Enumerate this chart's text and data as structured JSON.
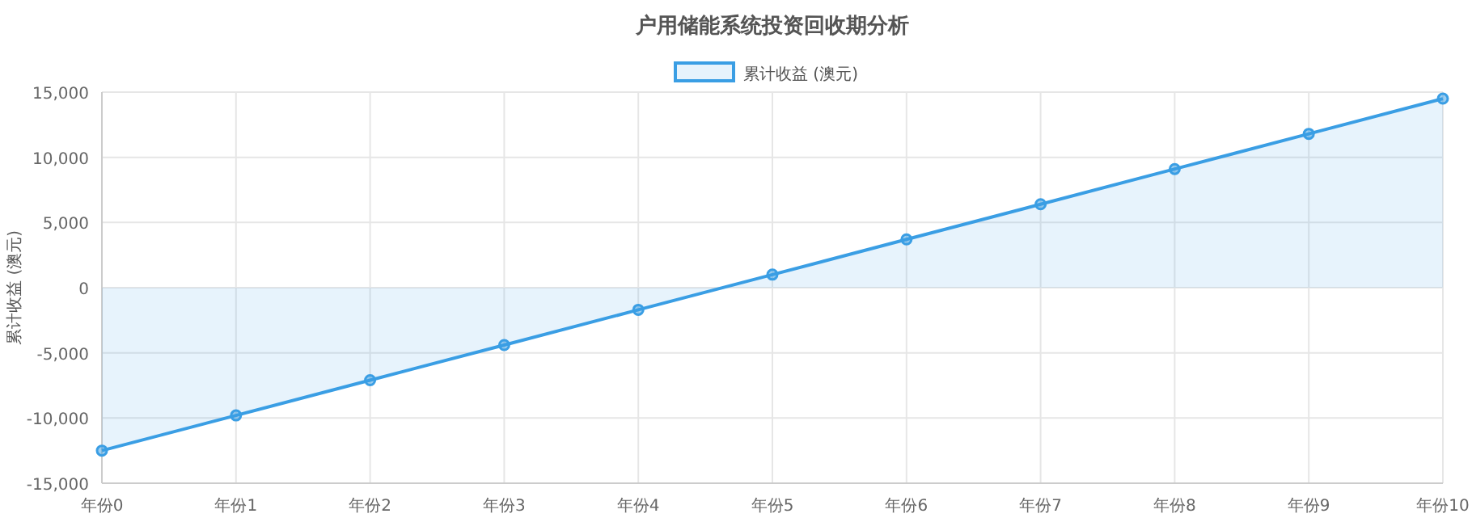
{
  "chart_data": {
    "type": "area",
    "title": "户用储能系统投资回收期分析",
    "ylabel": "累计收益 (澳元)",
    "categories": [
      "年份0",
      "年份1",
      "年份2",
      "年份3",
      "年份4",
      "年份5",
      "年份6",
      "年份7",
      "年份8",
      "年份9",
      "年份10"
    ],
    "series": [
      {
        "name": "累计收益 (澳元)",
        "color": "#3a9ee4",
        "values": [
          -12500,
          -9800,
          -7100,
          -4400,
          -1700,
          1000,
          3700,
          6400,
          9100,
          11800,
          14500
        ]
      }
    ],
    "ylim": [
      -15000,
      15000
    ],
    "yticks": [
      {
        "value": -15000,
        "label": "-15,000"
      },
      {
        "value": -10000,
        "label": "-10,000"
      },
      {
        "value": -5000,
        "label": "-5,000"
      },
      0,
      {
        "value": 5000,
        "label": "5,000"
      },
      {
        "value": 10000,
        "label": "10,000"
      },
      {
        "value": 15000,
        "label": "15,000"
      }
    ],
    "grid": true,
    "legend": "top",
    "marker": "circle",
    "line_style": "solid"
  }
}
